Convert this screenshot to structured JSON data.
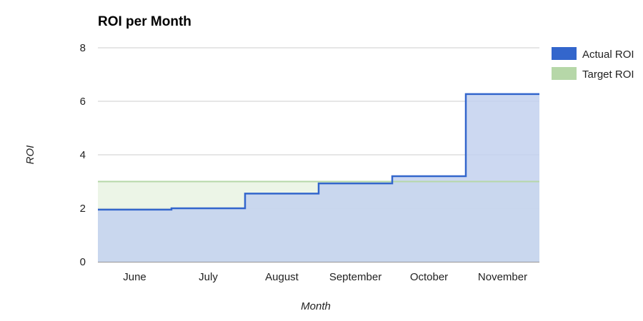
{
  "chart_data": {
    "type": "area",
    "style": "stepped",
    "title": "ROI per Month",
    "xlabel": "Month",
    "ylabel": "ROI",
    "categories": [
      "June",
      "July",
      "August",
      "September",
      "October",
      "November"
    ],
    "ylim": [
      0,
      8
    ],
    "yticks": [
      "0",
      "2",
      "4",
      "6",
      "8"
    ],
    "grid": true,
    "legend_position": "right",
    "series": [
      {
        "name": "Actual ROI",
        "values": [
          1.95,
          2.0,
          2.55,
          2.93,
          3.2,
          6.27
        ],
        "color": "#3366cc",
        "fill": "#c3d1ef"
      },
      {
        "name": "Target ROI",
        "values": [
          3.0,
          3.0,
          3.0,
          3.0,
          3.0,
          3.0
        ],
        "color": "#b6d7a8",
        "fill": "#e6f2df"
      }
    ]
  }
}
